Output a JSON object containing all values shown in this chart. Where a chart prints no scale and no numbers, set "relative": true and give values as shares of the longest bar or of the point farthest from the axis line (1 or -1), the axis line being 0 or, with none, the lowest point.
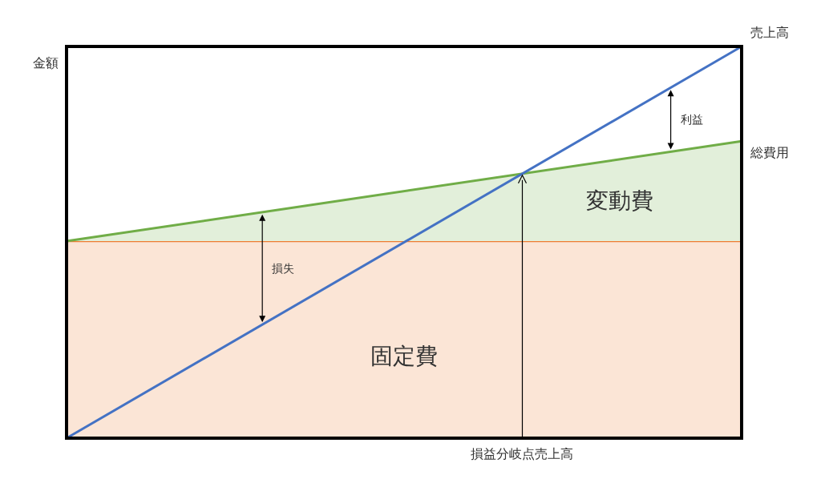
{
  "chart_data": {
    "type": "line",
    "relative": true,
    "ylabel": "金額",
    "categories": [
      null,
      null
    ],
    "series": [
      {
        "name": "固定費",
        "type": "area",
        "color": "#ed7d31",
        "values": [
          0.503,
          0.503
        ]
      },
      {
        "name": "総費用",
        "color": "#70ad47",
        "values": [
          0.503,
          0.758
        ],
        "lower": [
          0.503,
          0.503
        ],
        "upper": [
          0.503,
          0.758
        ]
      },
      {
        "name": "売上高",
        "color": "#4472c4",
        "values": [
          0,
          1
        ]
      }
    ],
    "annotations": [
      "利益",
      "損失",
      "損益分岐点売上高",
      "変動費"
    ]
  }
}
